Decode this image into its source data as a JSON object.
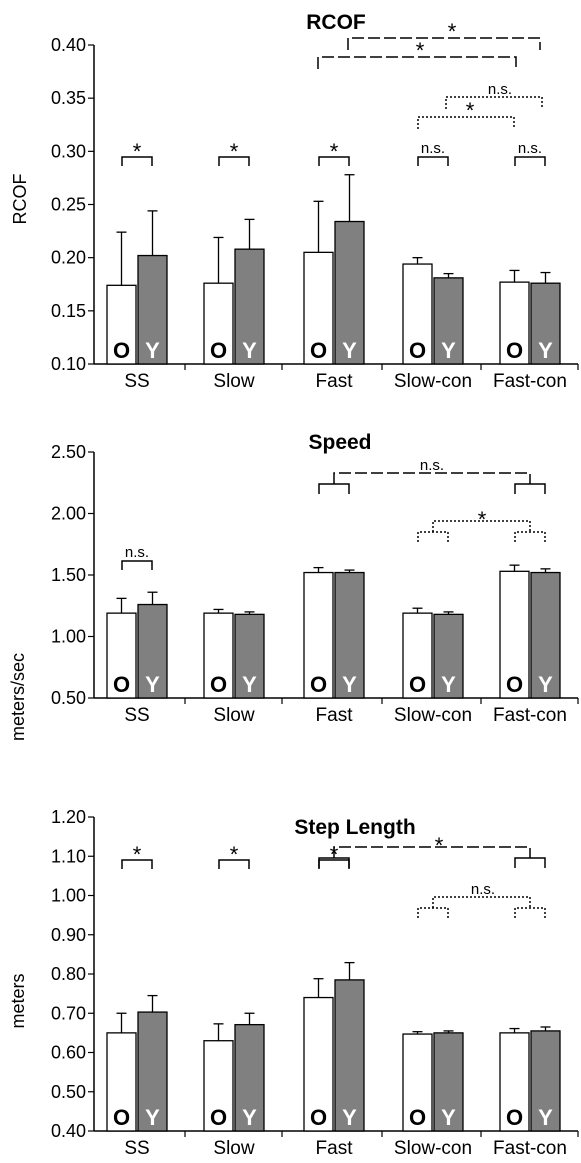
{
  "chart_data": [
    {
      "type": "bar",
      "title": "RCOF",
      "ylabel": "RCOF",
      "xlabel": "",
      "categories": [
        "SS",
        "Slow",
        "Fast",
        "Slow-con",
        "Fast-con"
      ],
      "ylim": [
        0.1,
        0.4
      ],
      "yticks": [
        "0.10",
        "0.15",
        "0.20",
        "0.25",
        "0.30",
        "0.35",
        "0.40"
      ],
      "series": [
        {
          "label": "O",
          "values": [
            0.174,
            0.176,
            0.205,
            0.194,
            0.177
          ],
          "errors": [
            0.05,
            0.043,
            0.048,
            0.006,
            0.011
          ]
        },
        {
          "label": "Y",
          "values": [
            0.202,
            0.208,
            0.234,
            0.181,
            0.176
          ],
          "errors": [
            0.042,
            0.028,
            0.044,
            0.004,
            0.01
          ]
        }
      ],
      "pair_annotations": [
        "*",
        "*",
        "*",
        "n.s.",
        "n.s."
      ],
      "comparisons": [
        {
          "from": "Fast",
          "to": "Fast-con",
          "label": "*",
          "style": "dashed"
        },
        {
          "from": "Fast",
          "to": "Fast-con",
          "label": "*",
          "style": "dashed"
        },
        {
          "from": "Slow-con",
          "to": "Fast-con",
          "label": "n.s.",
          "style": "dotted"
        },
        {
          "from": "Slow-con",
          "to": "Fast-con",
          "label": "*",
          "style": "dotted"
        }
      ]
    },
    {
      "type": "bar",
      "title": "Speed",
      "ylabel": "meters/sec",
      "xlabel": "",
      "categories": [
        "SS",
        "Slow",
        "Fast",
        "Slow-con",
        "Fast-con"
      ],
      "ylim": [
        0.5,
        2.5
      ],
      "yticks": [
        "0.50",
        "1.00",
        "1.50",
        "2.00",
        "2.50"
      ],
      "series": [
        {
          "label": "O",
          "values": [
            1.19,
            1.19,
            1.52,
            1.19,
            1.53
          ],
          "errors": [
            0.12,
            0.03,
            0.04,
            0.04,
            0.05
          ]
        },
        {
          "label": "Y",
          "values": [
            1.26,
            1.18,
            1.52,
            1.18,
            1.52
          ],
          "errors": [
            0.1,
            0.02,
            0.02,
            0.02,
            0.03
          ]
        }
      ],
      "pair_annotations": [
        "n.s.",
        "",
        "",
        "",
        ""
      ],
      "comparisons": [
        {
          "from": "Fast",
          "to": "Fast-con",
          "label": "n.s.",
          "style": "dashed"
        },
        {
          "from": "Slow-con",
          "to": "Fast-con",
          "label": "*",
          "style": "dotted"
        }
      ]
    },
    {
      "type": "bar",
      "title": "Step Length",
      "ylabel": "meters",
      "xlabel": "",
      "categories": [
        "SS",
        "Slow",
        "Fast",
        "Slow-con",
        "Fast-con"
      ],
      "ylim": [
        0.4,
        1.2
      ],
      "yticks": [
        "0.40",
        "0.50",
        "0.60",
        "0.70",
        "0.80",
        "0.90",
        "1.00",
        "1.10",
        "1.20"
      ],
      "series": [
        {
          "label": "O",
          "values": [
            0.65,
            0.63,
            0.74,
            0.647,
            0.65
          ],
          "errors": [
            0.05,
            0.043,
            0.048,
            0.006,
            0.011
          ]
        },
        {
          "label": "Y",
          "values": [
            0.703,
            0.671,
            0.785,
            0.65,
            0.655
          ],
          "errors": [
            0.042,
            0.029,
            0.044,
            0.005,
            0.01
          ]
        }
      ],
      "pair_annotations": [
        "*",
        "*",
        "*",
        "",
        ""
      ],
      "comparisons": [
        {
          "from": "Fast",
          "to": "Fast-con",
          "label": "*",
          "style": "dashed"
        },
        {
          "from": "Slow-con",
          "to": "Fast-con",
          "label": "n.s.",
          "style": "dotted"
        }
      ]
    }
  ]
}
